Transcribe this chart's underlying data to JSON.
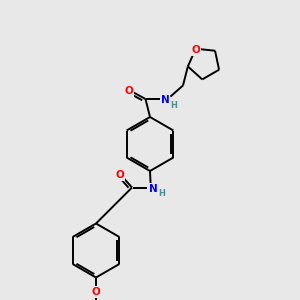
{
  "bg_color": "#e8e8e8",
  "bond_color": "#000000",
  "atom_colors": {
    "O": "#ff0000",
    "N": "#0000ff"
  },
  "figsize": [
    3.0,
    3.0
  ],
  "dpi": 100,
  "lw": 1.4,
  "font_size": 7.5
}
